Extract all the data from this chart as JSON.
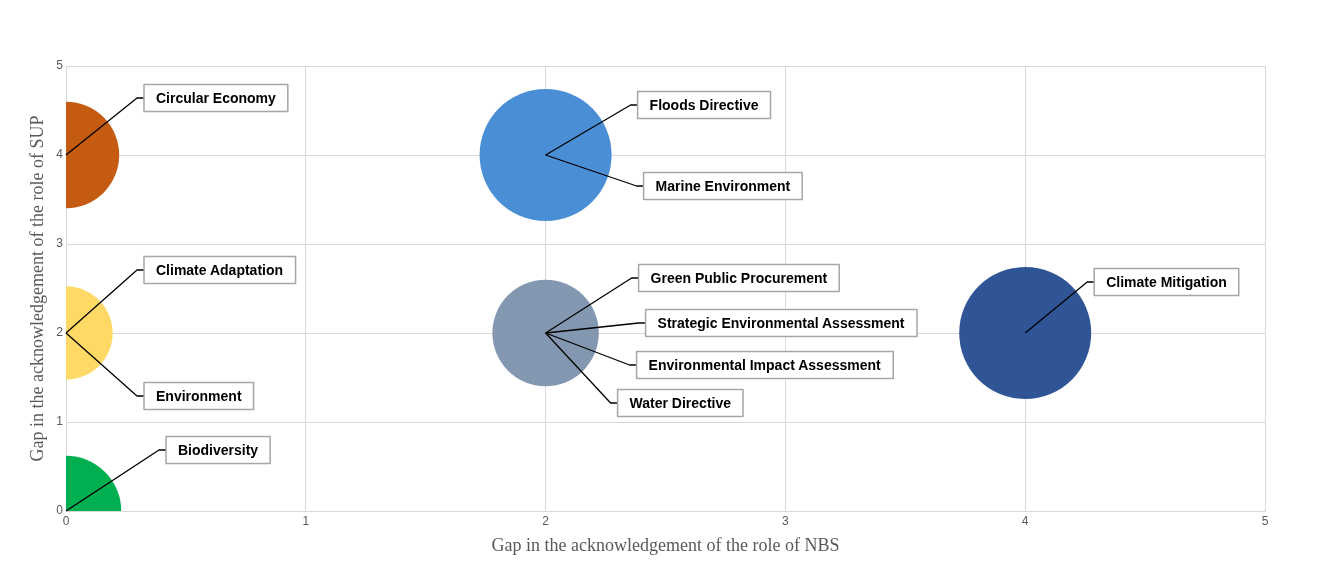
{
  "chart_data": {
    "type": "bubble",
    "xlabel": "Gap in the acknowledgement of the role of NBS",
    "ylabel": "Gap in the acknowledgement of the role of SUP",
    "x": [
      0,
      2,
      0,
      2,
      4,
      0
    ],
    "values": [
      4,
      4,
      2,
      2,
      2,
      0
    ],
    "sizes": [
      0.65,
      1,
      0.5,
      0.65,
      1,
      0.7
    ],
    "colors": [
      "#c55a11",
      "#4a8fd6",
      "#ffd966",
      "#8497b0",
      "#2f5597",
      "#00b050"
    ],
    "xlim": [
      0,
      5
    ],
    "ylim": [
      0,
      5
    ],
    "xticks": [
      0,
      1,
      2,
      3,
      4,
      5
    ],
    "yticks": [
      0,
      1,
      2,
      3,
      4,
      5
    ],
    "grid": true,
    "annotations": [
      {
        "text": "Circular Economy",
        "x": 0,
        "y": 4
      },
      {
        "text": "Climate Adaptation",
        "x": 0,
        "y": 2
      },
      {
        "text": "Environment",
        "x": 0,
        "y": 2
      },
      {
        "text": "Biodiversity",
        "x": 0,
        "y": 0
      },
      {
        "text": "Floods Directive",
        "x": 2,
        "y": 4
      },
      {
        "text": "Marine Environment",
        "x": 2,
        "y": 4
      },
      {
        "text": "Green Public Procurement",
        "x": 2,
        "y": 2
      },
      {
        "text": "Strategic Environmental Assessment",
        "x": 2,
        "y": 2
      },
      {
        "text": "Environmental Impact Assessment",
        "x": 2,
        "y": 2
      },
      {
        "text": "Water Directive",
        "x": 2,
        "y": 2
      },
      {
        "text": "Climate Mitigation",
        "x": 4,
        "y": 2
      }
    ]
  }
}
